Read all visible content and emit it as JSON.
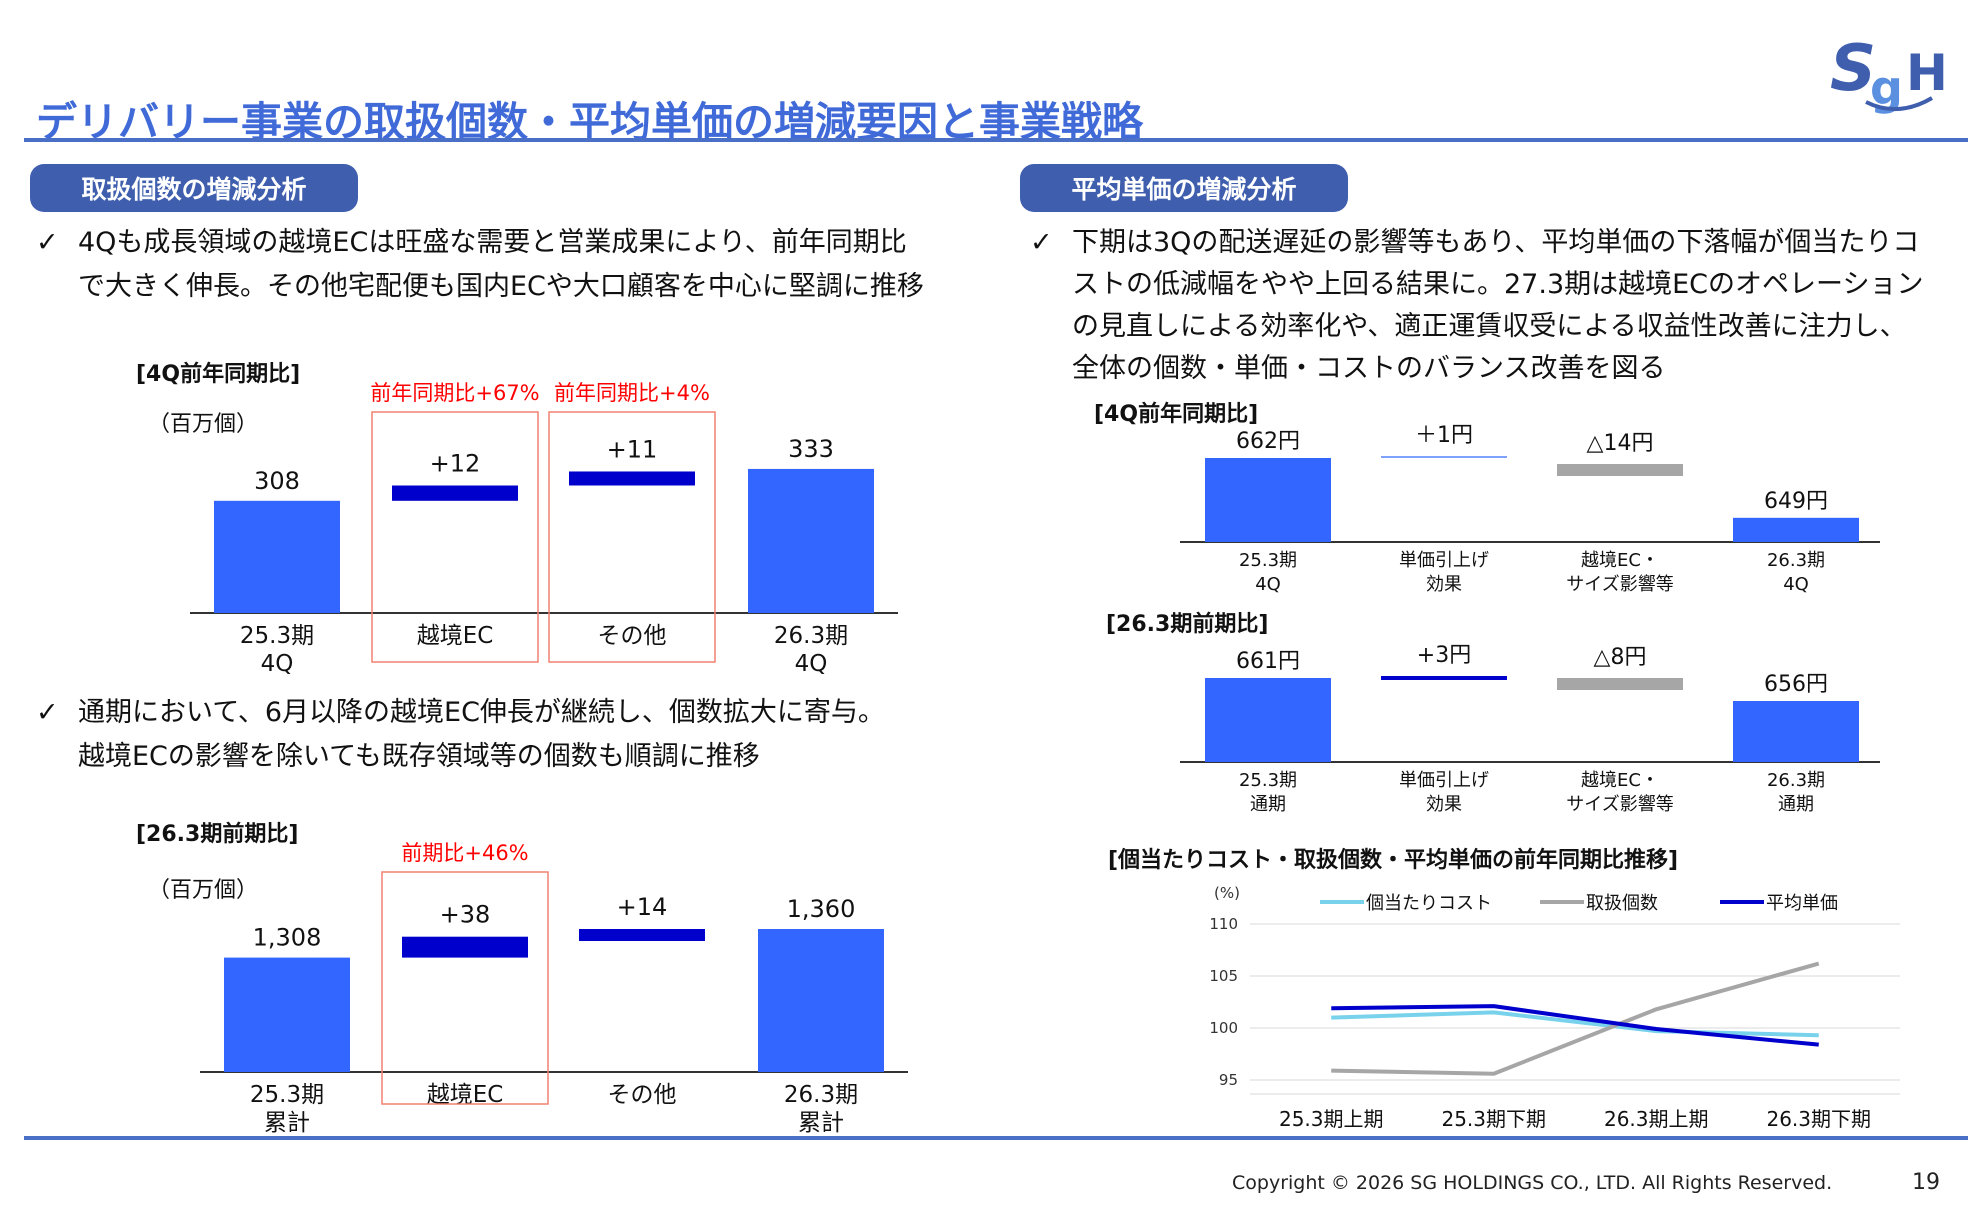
{
  "header": {
    "title": "デリバリー事業の取扱個数・平均単価の増減要因と事業戦略",
    "logo_text": "SGH"
  },
  "left": {
    "section_label": "取扱個数の増減分析",
    "bullet1": [
      "4Qも成長領域の越境ECは旺盛な需要と営業成果により、前年同期比",
      "で大きく伸長。その他宅配便も国内ECや大口顧客を中心に堅調に推移"
    ],
    "bullet2": [
      "通期において、6月以降の越境EC伸長が継続し、個数拡大に寄与。",
      "越境ECの影響を除いても既存領域等の個数も順調に推移"
    ],
    "check": "✓"
  },
  "right": {
    "section_label": "平均単価の増減分析",
    "bullet1": [
      "下期は3Qの配送遅延の影響等もあり、平均単価の下落幅が個当たりコ",
      "ストの低減幅をやや上回る結果に。27.3期は越境ECのオペレーション",
      "の見直しによる効率化や、適正運賃収受による収益性改善に注力し、",
      "全体の個数・単価・コストのバランス改善を図る"
    ],
    "check": "✓"
  },
  "colors": {
    "bar": "#3366ff",
    "delta": "#0000cc",
    "gray": "#a6a6a6",
    "light": "#7fa2ff",
    "highlight": "#f08070",
    "red": "#ff0000",
    "cyan": "#79d2eb"
  },
  "chart_data": [
    {
      "type": "bar",
      "subtype": "waterfall",
      "title": "[4Q前年同期比]",
      "unit": "（百万個）",
      "categories": [
        [
          "25.3期",
          "4Q"
        ],
        [
          "越境EC"
        ],
        [
          "その他"
        ],
        [
          "26.3期",
          "4Q"
        ]
      ],
      "values": [
        308,
        12,
        11,
        333
      ],
      "labels": [
        "308",
        "+12",
        "+11",
        "333"
      ],
      "kinds": [
        "total",
        "delta",
        "delta",
        "total"
      ],
      "annotations": [
        {
          "category": 1,
          "text": "前年同期比+67%"
        },
        {
          "category": 2,
          "text": "前年同期比+4%"
        }
      ]
    },
    {
      "type": "bar",
      "subtype": "waterfall",
      "title": "[26.3期前期比]",
      "unit": "（百万個）",
      "categories": [
        [
          "25.3期",
          "累計"
        ],
        [
          "越境EC"
        ],
        [
          "その他"
        ],
        [
          "26.3期",
          "累計"
        ]
      ],
      "values": [
        1308,
        38,
        14,
        1360
      ],
      "labels": [
        "1,308",
        "+38",
        "+14",
        "1,360"
      ],
      "kinds": [
        "total",
        "delta",
        "delta",
        "total"
      ],
      "annotations": [
        {
          "category": 1,
          "text": "前期比+46%"
        }
      ]
    },
    {
      "type": "bar",
      "subtype": "waterfall",
      "title": "[4Q前年同期比]",
      "categories": [
        [
          "25.3期",
          "4Q"
        ],
        [
          "単価引上げ",
          "効果"
        ],
        [
          "越境EC・",
          "サイズ影響等"
        ],
        [
          "26.3期",
          "4Q"
        ]
      ],
      "values": [
        662,
        1,
        -14,
        649
      ],
      "labels": [
        "662円",
        "＋1円",
        "△14円",
        "649円"
      ],
      "kinds": [
        "total",
        "delta-light",
        "delta-gray",
        "total"
      ]
    },
    {
      "type": "bar",
      "subtype": "waterfall",
      "title": "[26.3期前期比]",
      "categories": [
        [
          "25.3期",
          "通期"
        ],
        [
          "単価引上げ",
          "効果"
        ],
        [
          "越境EC・",
          "サイズ影響等"
        ],
        [
          "26.3期",
          "通期"
        ]
      ],
      "values": [
        661,
        3,
        -8,
        656
      ],
      "labels": [
        "661円",
        "+3円",
        "△8円",
        "656円"
      ],
      "kinds": [
        "total",
        "delta",
        "delta-gray",
        "total"
      ]
    },
    {
      "type": "line",
      "title": "[個当たりコスト・取扱個数・平均単価の前年同期比推移]",
      "ylabel": "(%)",
      "categories": [
        "25.3期上期",
        "25.3期下期",
        "26.3期上期",
        "26.3期下期"
      ],
      "ylim": [
        95,
        110
      ],
      "yticks": [
        95,
        100,
        105,
        110
      ],
      "grid": true,
      "legend": "top",
      "series": [
        {
          "name": "個当たりコスト",
          "values": [
            101.0,
            101.5,
            99.7,
            99.3
          ]
        },
        {
          "name": "取扱個数",
          "values": [
            95.9,
            95.6,
            101.8,
            106.2
          ]
        },
        {
          "name": "平均単価",
          "values": [
            101.9,
            102.1,
            99.9,
            98.4
          ]
        }
      ]
    }
  ],
  "footer": {
    "copyright": "Copyright © 2026 SG HOLDINGS CO., LTD.  All Rights Reserved.",
    "page": "19"
  }
}
